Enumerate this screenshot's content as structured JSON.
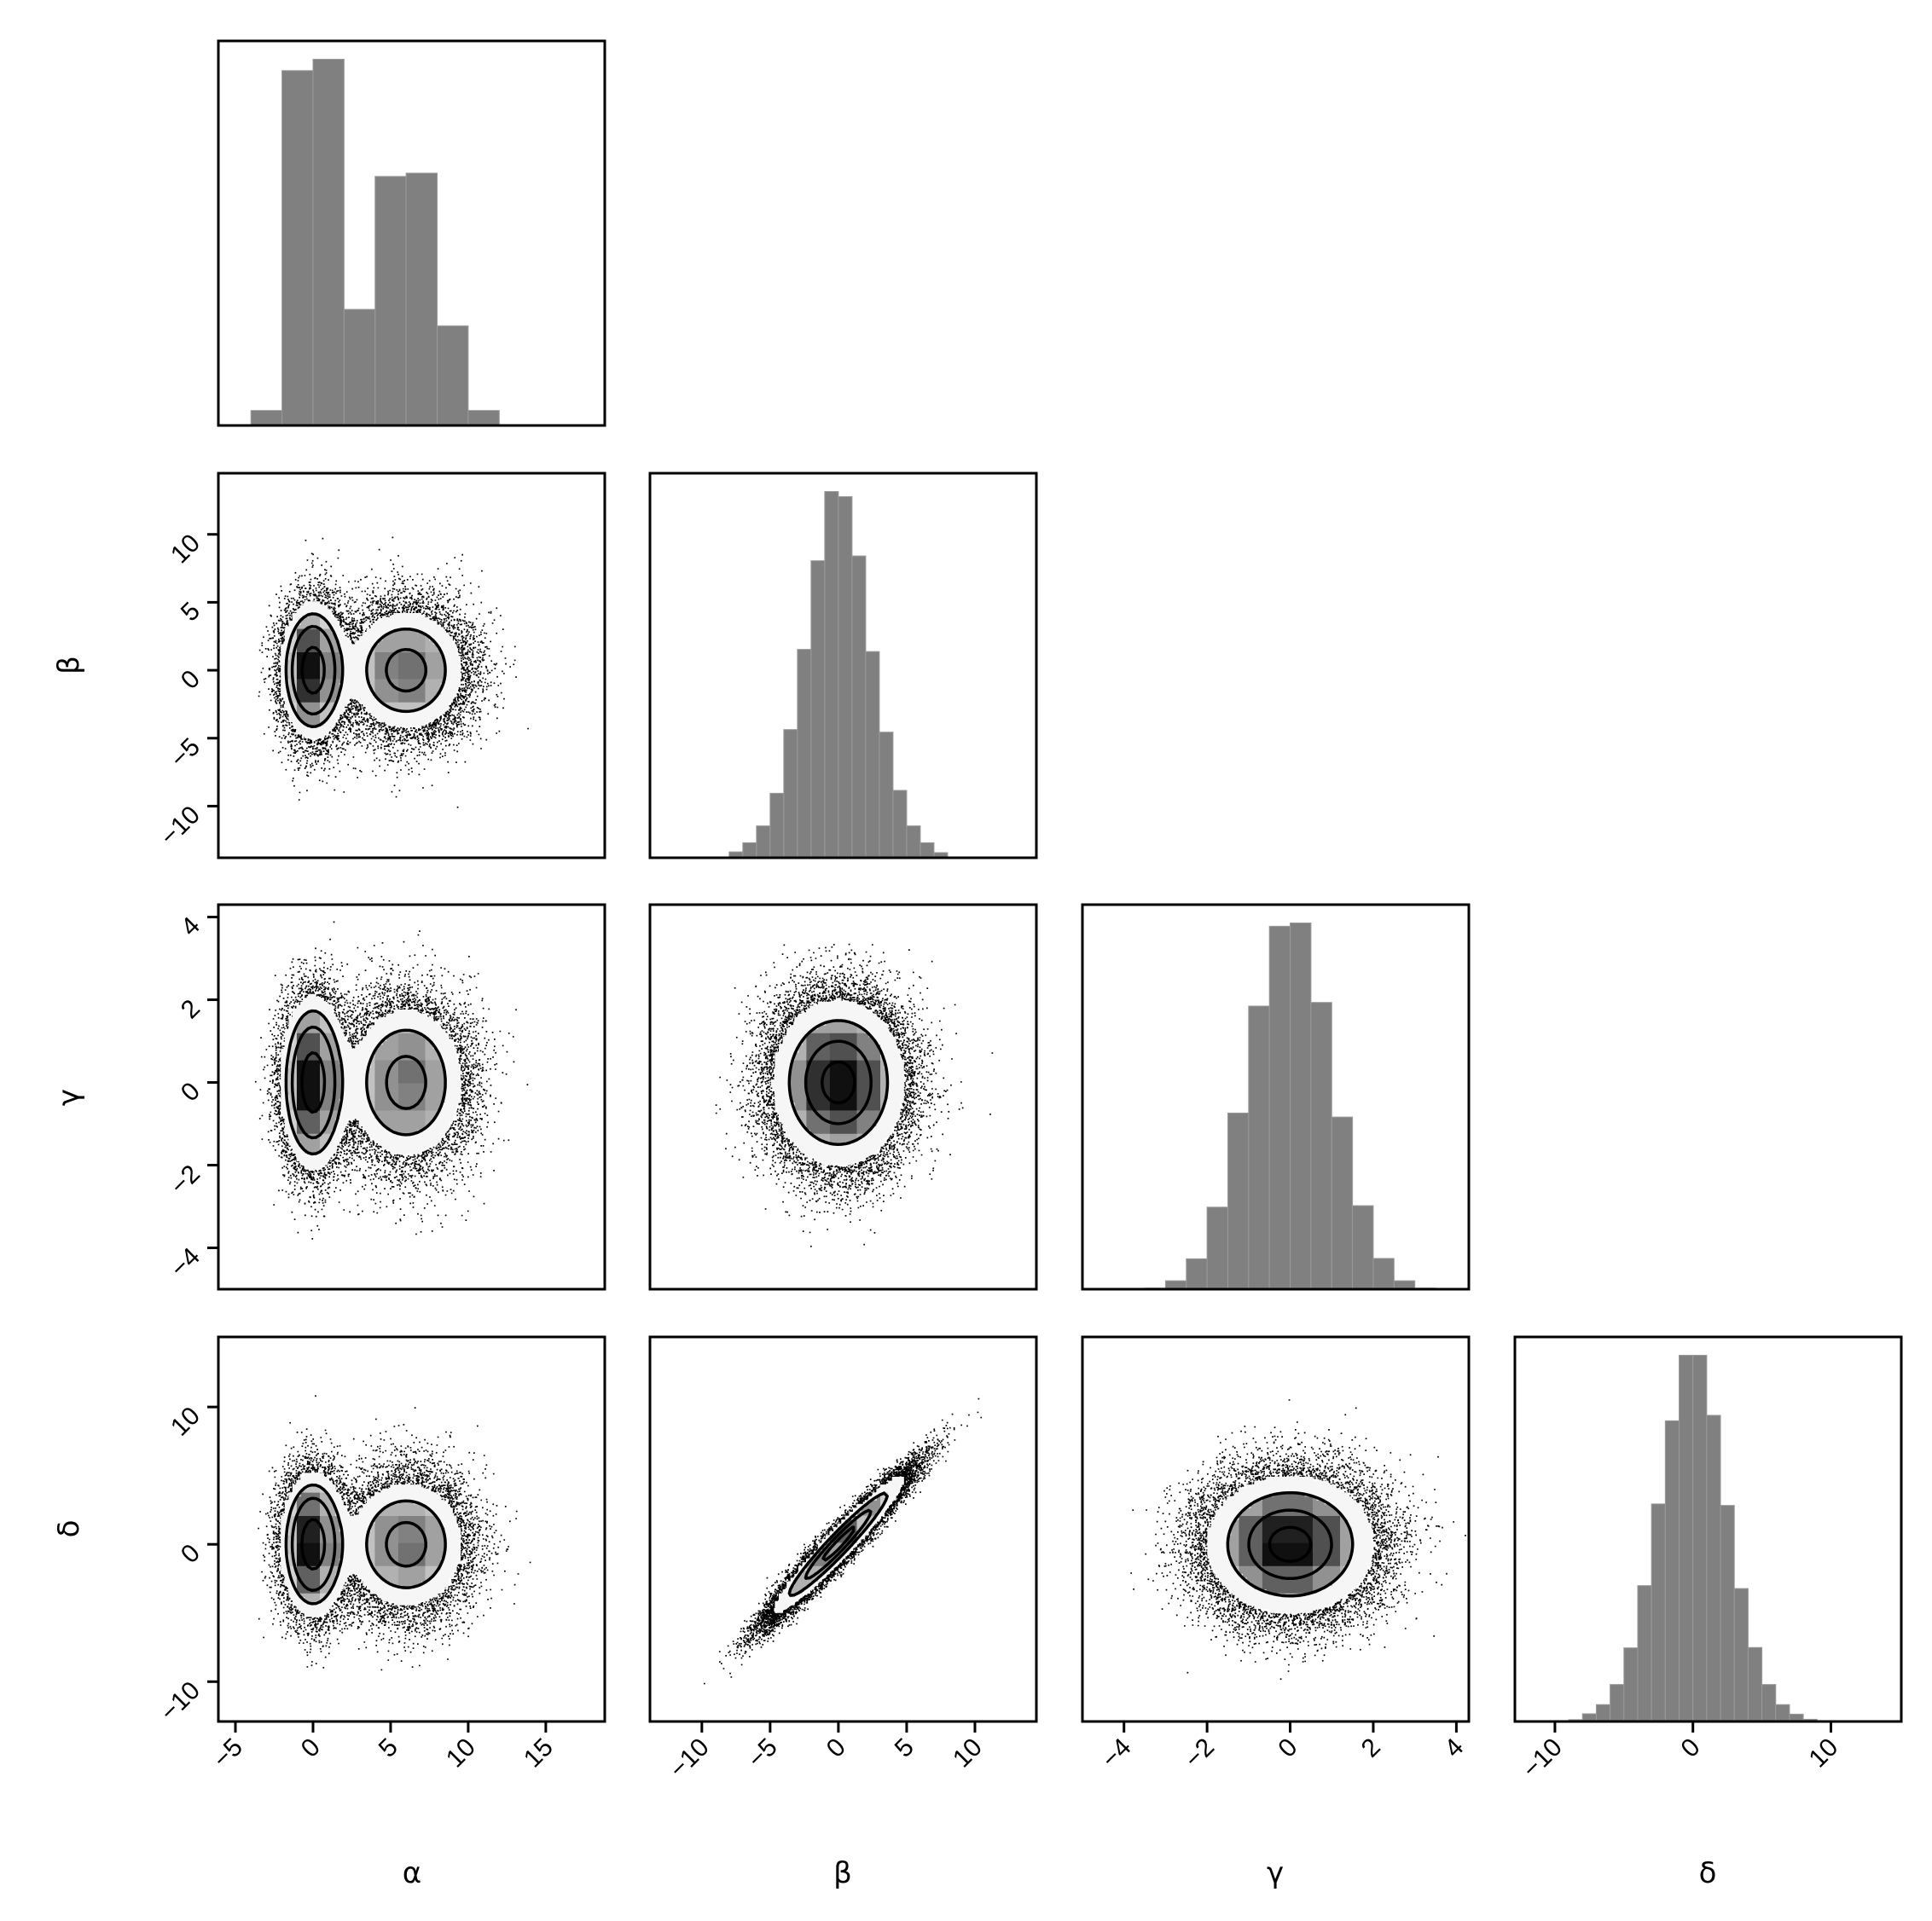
{
  "chart_data": {
    "type": "corner",
    "title": "",
    "parameters": [
      {
        "label": "α",
        "range": [
          -6.1,
          18.8
        ],
        "ticks": [
          -5,
          0,
          5,
          10,
          15
        ],
        "tick_labels": [
          "−5",
          "0",
          "5",
          "10",
          "15"
        ]
      },
      {
        "label": "β",
        "range": [
          -13.8,
          14.5
        ],
        "ticks": [
          -10,
          -5,
          0,
          5,
          10
        ],
        "tick_labels": [
          "−10",
          "−5",
          "0",
          "5",
          "10"
        ]
      },
      {
        "label": "γ",
        "range": [
          -5.0,
          4.3
        ],
        "ticks": [
          -4,
          -2,
          0,
          2,
          4
        ],
        "tick_labels": [
          "−4",
          "−2",
          "0",
          "2",
          "4"
        ]
      },
      {
        "label": "δ",
        "range": [
          -12.9,
          15.1
        ],
        "ticks": [
          -10,
          0,
          10
        ],
        "tick_labels": [
          "−10",
          "0",
          "10"
        ]
      }
    ],
    "histograms": [
      {
        "parameter_index": 0,
        "bin_start": -4,
        "bin_width": 2,
        "ylim": [
          0,
          1.05
        ],
        "relative_counts": [
          0.041,
          0.969,
          1.0,
          0.317,
          0.68,
          0.689,
          0.272,
          0.041
        ]
      },
      {
        "parameter_index": 1,
        "bin_start": -10,
        "bin_width": 1,
        "ylim": [
          0,
          1.05
        ],
        "relative_counts": [
          0.001,
          0.002,
          0.016,
          0.041,
          0.087,
          0.176,
          0.35,
          0.569,
          0.811,
          1.0,
          0.986,
          0.824,
          0.563,
          0.343,
          0.184,
          0.087,
          0.041,
          0.014,
          0.002
        ]
      },
      {
        "parameter_index": 2,
        "bin_start": -3.5,
        "bin_width": 0.5,
        "ylim": [
          0,
          1.05
        ],
        "relative_counts": [
          0.003,
          0.023,
          0.083,
          0.224,
          0.481,
          0.773,
          0.991,
          1.0,
          0.783,
          0.47,
          0.228,
          0.084,
          0.023,
          0.003
        ]
      },
      {
        "parameter_index": 3,
        "bin_start": -9,
        "bin_width": 1,
        "ylim": [
          0,
          1.05
        ],
        "relative_counts": [
          0.005,
          0.021,
          0.046,
          0.101,
          0.201,
          0.371,
          0.594,
          0.821,
          1.0,
          1.0,
          0.836,
          0.59,
          0.363,
          0.202,
          0.101,
          0.046,
          0.02,
          0.006
        ]
      }
    ],
    "pair_plots": [
      [
        0,
        1
      ],
      [
        0,
        2
      ],
      [
        1,
        2
      ],
      [
        0,
        3
      ],
      [
        1,
        3
      ],
      [
        2,
        3
      ]
    ],
    "grid": false,
    "colors": {
      "hist_fill": "#808080",
      "frame": "#000000",
      "points": "#000000"
    }
  }
}
